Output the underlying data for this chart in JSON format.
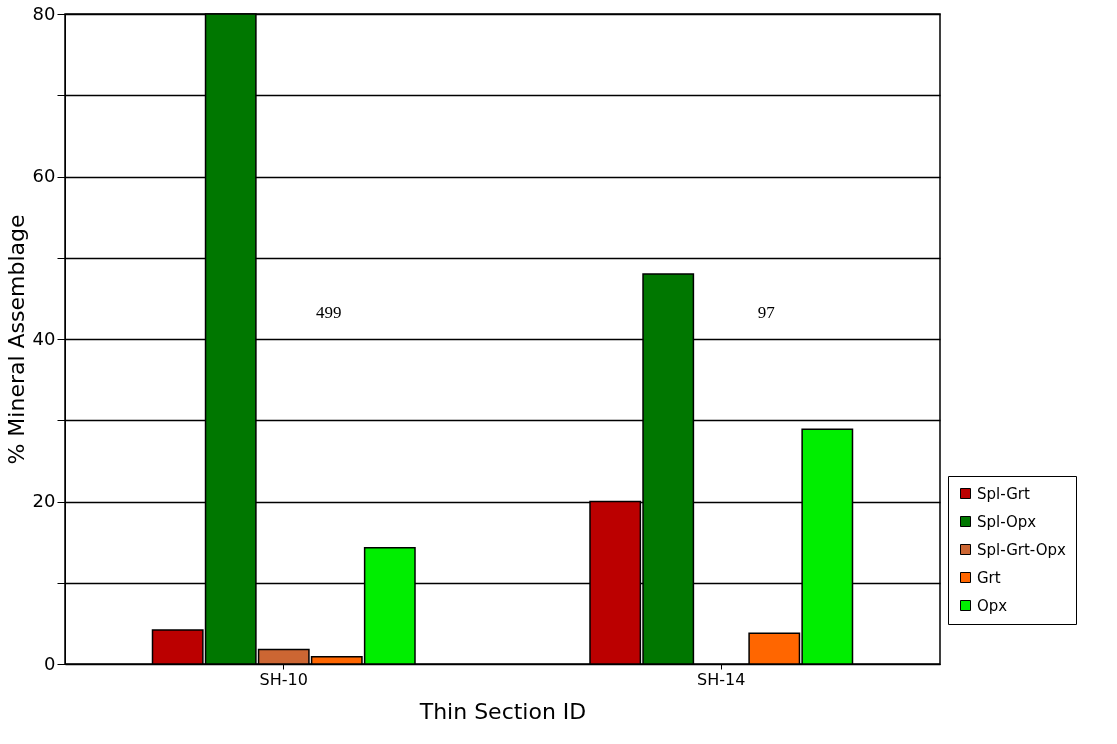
{
  "chart_data": {
    "type": "bar",
    "xlabel": "Thin Section ID",
    "ylabel": "% Mineral Assemblage",
    "categories": [
      "SH-10",
      "SH-14"
    ],
    "series": [
      {
        "name": "Spl-Grt",
        "color": "#bb0000",
        "values": [
          4.2,
          20
        ]
      },
      {
        "name": "Spl-Opx",
        "color": "#007700",
        "values": [
          80,
          48
        ]
      },
      {
        "name": "Spl-Grt-Opx",
        "color": "#cc6633",
        "values": [
          1.8,
          null
        ]
      },
      {
        "name": "Grt",
        "color": "#ff6600",
        "values": [
          0.9,
          3.8
        ]
      },
      {
        "name": "Opx",
        "color": "#00ee00",
        "values": [
          14.3,
          28.9
        ]
      }
    ],
    "ylim": [
      0,
      80
    ],
    "yticks": [
      0,
      {
        "value": 10,
        "label": null
      },
      20,
      {
        "value": 30,
        "label": null
      },
      40,
      {
        "value": 50,
        "label": null
      },
      60,
      {
        "value": 70,
        "label": null
      },
      80
    ],
    "grid": "y",
    "legend": "bottom right",
    "annotations": [
      "499",
      "97"
    ]
  }
}
